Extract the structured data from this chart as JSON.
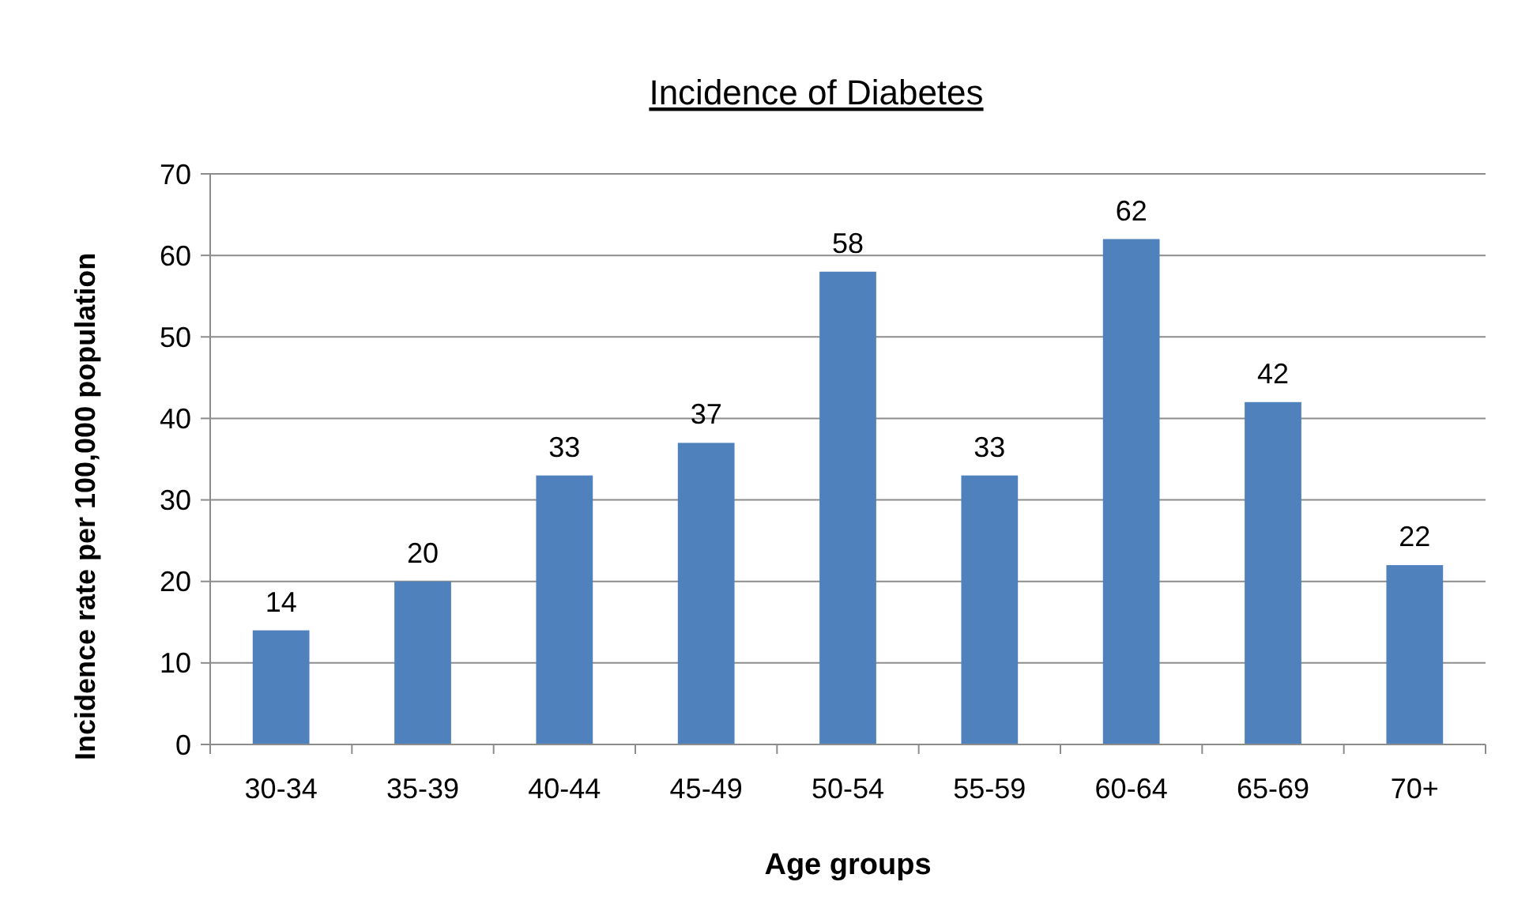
{
  "chart_data": {
    "type": "bar",
    "title": "Incidence of Diabetes",
    "xlabel": "Age groups",
    "ylabel": "Incidence rate per 100,000 population",
    "categories": [
      "30-34",
      "35-39",
      "40-44",
      "45-49",
      "50-54",
      "55-59",
      "60-64",
      "65-69",
      "70+"
    ],
    "values": [
      14,
      20,
      33,
      37,
      58,
      33,
      62,
      42,
      22
    ],
    "color": "#4f81bd",
    "ylim": [
      0,
      70
    ],
    "yticks": [
      0,
      10,
      20,
      30,
      40,
      50,
      60,
      70
    ],
    "grid": "y",
    "data_labels": true
  }
}
